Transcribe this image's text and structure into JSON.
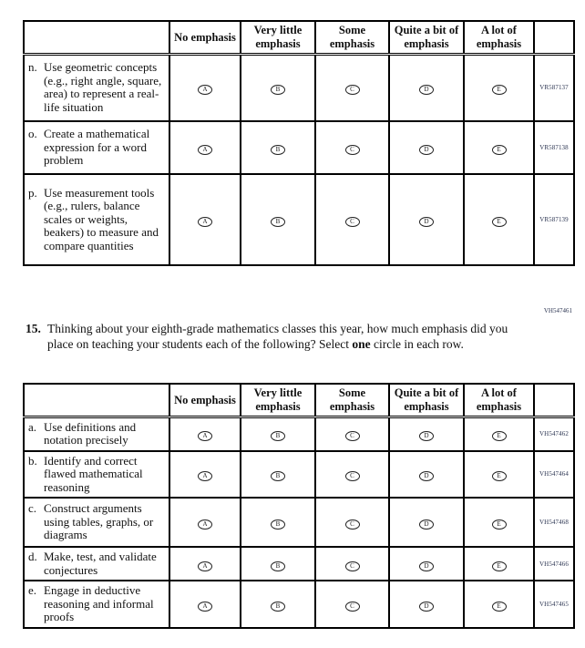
{
  "answer_options": [
    "No emphasis",
    "Very little emphasis",
    "Some emphasis",
    "Quite a bit of emphasis",
    "A lot of emphasis"
  ],
  "bubbles": {
    "a": "A",
    "b": "B",
    "c": "C",
    "d": "D",
    "e": "E"
  },
  "table1": {
    "rows": [
      {
        "letter": "n.",
        "text": "Use geometric concepts (e.g., right angle, square, area) to represent a real-life situation",
        "code": "VR587137"
      },
      {
        "letter": "o.",
        "text": "Create a mathematical expression for a word problem",
        "code": "VR587138"
      },
      {
        "letter": "p.",
        "text": "Use measurement tools (e.g., rulers, balance scales or weights, beakers) to measure and compare quantities",
        "code": "VR587139"
      }
    ]
  },
  "question": {
    "number": "15.",
    "text_before": "Thinking about your eighth-grade mathematics classes this year, how much emphasis did you place on teaching your students each of the following? Select ",
    "bold_word": "one",
    "text_after": " circle in each row.",
    "code": "VH547461"
  },
  "table2": {
    "rows": [
      {
        "letter": "a.",
        "text": "Use definitions and notation precisely",
        "code": "VH547462"
      },
      {
        "letter": "b.",
        "text": "Identify and correct flawed mathematical reasoning",
        "code": "VH547464"
      },
      {
        "letter": "c.",
        "text": "Construct arguments using tables, graphs, or diagrams",
        "code": "VH547468"
      },
      {
        "letter": "d.",
        "text": "Make, test, and validate conjectures",
        "code": "VH547466"
      },
      {
        "letter": "e.",
        "text": "Engage in deductive reasoning and informal proofs",
        "code": "VH547465"
      }
    ]
  }
}
